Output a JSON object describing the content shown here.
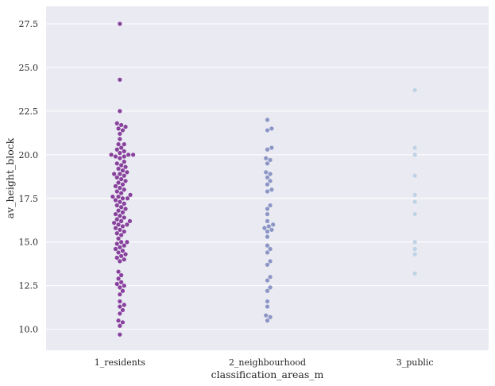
{
  "chart_data": {
    "type": "scatter",
    "subtype": "swarm",
    "title": "",
    "xlabel": "classification_areas_m",
    "ylabel": "av_height_block",
    "categories": [
      "1_residents",
      "2_neighbourhood",
      "3_public"
    ],
    "ylim": [
      8.8,
      28.5
    ],
    "yticks": [
      10.0,
      12.5,
      15.0,
      17.5,
      20.0,
      22.5,
      25.0,
      27.5
    ],
    "ytick_labels": [
      "10.0",
      "12.5",
      "15.0",
      "17.5",
      "20.0",
      "22.5",
      "25.0",
      "27.5"
    ],
    "grid": true,
    "background": "#eaeaf2",
    "colors": [
      "#88419d",
      "#8c96c6",
      "#bfd3e6"
    ],
    "series": [
      {
        "category": "1_residents",
        "values": [
          27.5,
          24.3,
          22.5,
          21.8,
          21.7,
          21.6,
          21.5,
          21.4,
          21.2,
          20.9,
          20.6,
          20.6,
          20.4,
          20.3,
          20.2,
          20.1,
          20.0,
          20.0,
          20.0,
          19.9,
          19.9,
          19.8,
          19.6,
          19.5,
          19.4,
          19.3,
          19.2,
          19.1,
          19.0,
          18.9,
          18.9,
          18.8,
          18.7,
          18.6,
          18.5,
          18.4,
          18.3,
          18.2,
          18.1,
          18.0,
          17.9,
          17.8,
          17.7,
          17.6,
          17.6,
          17.5,
          17.5,
          17.4,
          17.3,
          17.2,
          17.1,
          17.0,
          16.9,
          16.8,
          16.7,
          16.6,
          16.5,
          16.4,
          16.3,
          16.2,
          16.2,
          16.1,
          16.0,
          16.0,
          15.9,
          15.8,
          15.7,
          15.6,
          15.5,
          15.4,
          15.2,
          15.0,
          15.0,
          14.9,
          14.8,
          14.7,
          14.6,
          14.5,
          14.4,
          14.3,
          14.2,
          14.1,
          14.0,
          13.9,
          13.3,
          13.1,
          12.9,
          12.7,
          12.6,
          12.5,
          12.4,
          12.2,
          12.0,
          11.6,
          11.4,
          11.3,
          11.1,
          10.9,
          10.5,
          10.4,
          10.2,
          9.7
        ]
      },
      {
        "category": "2_neighbourhood",
        "values": [
          22.0,
          21.5,
          21.4,
          20.4,
          20.3,
          19.8,
          19.7,
          19.5,
          19.0,
          18.9,
          18.7,
          18.5,
          18.3,
          18.0,
          17.9,
          17.1,
          16.9,
          16.6,
          16.2,
          16.0,
          15.9,
          15.8,
          15.7,
          15.6,
          15.3,
          14.8,
          14.6,
          14.4,
          13.9,
          13.7,
          13.0,
          12.8,
          12.4,
          12.2,
          11.6,
          11.3,
          10.8,
          10.7,
          10.5
        ]
      },
      {
        "category": "3_public",
        "values": [
          23.7,
          20.4,
          20.0,
          18.8,
          17.7,
          17.3,
          16.6,
          15.0,
          14.6,
          14.3,
          13.2
        ]
      }
    ]
  }
}
